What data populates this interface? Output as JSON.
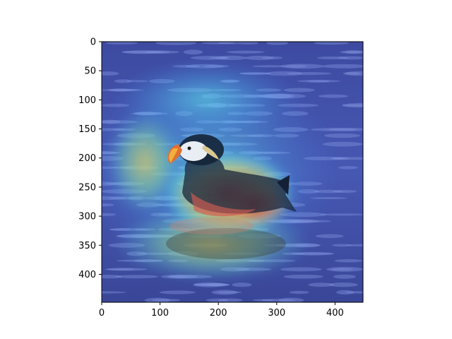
{
  "chart_data": {
    "type": "heatmap",
    "title": "",
    "xlabel": "",
    "ylabel": "",
    "xlim": [
      0,
      448
    ],
    "ylim": [
      448,
      0
    ],
    "x_ticks": [
      0,
      100,
      200,
      300,
      400
    ],
    "y_ticks": [
      0,
      50,
      100,
      150,
      200,
      250,
      300,
      350,
      400
    ],
    "image_content": "puffin-on-water-with-attention-heatmap-overlay",
    "heatmap_hotspots": [
      {
        "x": 280,
        "y": 285,
        "level": 1.0
      },
      {
        "x": 240,
        "y": 270,
        "level": 0.85
      },
      {
        "x": 170,
        "y": 225,
        "level": 0.6
      },
      {
        "x": 150,
        "y": 340,
        "level": 0.55
      },
      {
        "x": 90,
        "y": 240,
        "level": 0.5
      }
    ],
    "colors": {
      "water": "#2f3d8a",
      "water_light": "#6b7fd1",
      "cold": "#3050e0",
      "warm": "#f7e05a",
      "hot": "#e23a2a"
    }
  }
}
